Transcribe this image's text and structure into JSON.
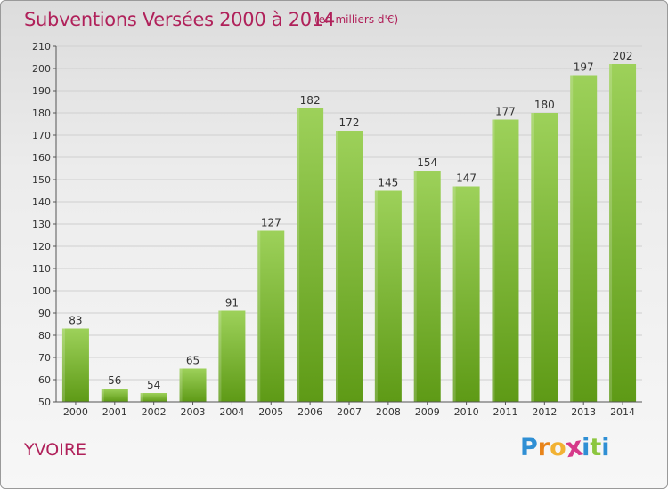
{
  "header": {
    "title": "Subventions Versées 2000 à 2014",
    "subtitle": "(en milliers d'€)"
  },
  "footer": {
    "place": "YVOIRE",
    "logo_letters": [
      "P",
      "r",
      "o",
      "x",
      "i",
      "t",
      "i"
    ],
    "logo_colors": [
      "#2f8fd4",
      "#e8841a",
      "#f2b233",
      "#d63a8a",
      "#2f8fd4",
      "#8cc63f",
      "#2f8fd4"
    ]
  },
  "colors": {
    "bar_top": "#9dd15a",
    "bar_bottom": "#5e9a16",
    "grid": "#cfcfcf",
    "axis": "#555555",
    "text": "#333333"
  },
  "chart_data": {
    "type": "bar",
    "title": "Subventions Versées 2000 à 2014",
    "subtitle": "(en milliers d'€)",
    "categories": [
      "2000",
      "2001",
      "2002",
      "2003",
      "2004",
      "2005",
      "2006",
      "2007",
      "2008",
      "2009",
      "2010",
      "2011",
      "2012",
      "2013",
      "2014"
    ],
    "values": [
      83,
      56,
      54,
      65,
      91,
      127,
      182,
      172,
      145,
      154,
      147,
      177,
      180,
      197,
      202
    ],
    "ylim": [
      50,
      210
    ],
    "yticks": [
      50,
      60,
      70,
      80,
      90,
      100,
      110,
      120,
      130,
      140,
      150,
      160,
      170,
      180,
      190,
      200,
      210
    ],
    "grid": true,
    "data_labels": true,
    "legend": "none"
  }
}
